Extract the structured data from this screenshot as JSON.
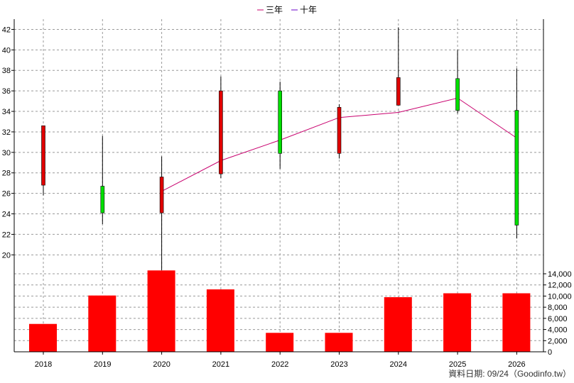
{
  "chart_data": [
    {
      "type": "candlestick",
      "legend": {
        "placement": "top-center",
        "items": [
          {
            "label": "三年",
            "color": "#c8006e"
          },
          {
            "label": "十年",
            "color": "#6a00c8"
          }
        ]
      },
      "categories": [
        "2018",
        "2019",
        "2020",
        "2021",
        "2022",
        "2023",
        "2024",
        "2025",
        "2026"
      ],
      "ylim": [
        18.5,
        43
      ],
      "yticks": [
        20,
        22,
        24,
        26,
        28,
        30,
        32,
        34,
        36,
        38,
        40,
        42
      ],
      "grid": true,
      "candles": [
        {
          "x": "2018",
          "open": 26.8,
          "close": 32.6,
          "high": 32.6,
          "low": 25.8
        },
        {
          "x": "2019",
          "open": 26.7,
          "close": 24.1,
          "high": 31.6,
          "low": 23.0
        },
        {
          "x": "2020",
          "open": 24.1,
          "close": 27.6,
          "high": 29.6,
          "low": 18.5
        },
        {
          "x": "2021",
          "open": 27.9,
          "close": 36.0,
          "high": 37.4,
          "low": 27.5
        },
        {
          "x": "2022",
          "open": 36.0,
          "close": 29.9,
          "high": 36.9,
          "low": 28.4
        },
        {
          "x": "2023",
          "open": 29.9,
          "close": 34.4,
          "high": 34.7,
          "low": 29.4
        },
        {
          "x": "2024",
          "open": 34.6,
          "close": 37.3,
          "high": 42.2,
          "low": 34.6
        },
        {
          "x": "2025",
          "open": 37.2,
          "close": 34.1,
          "high": 40.0,
          "low": 33.8
        },
        {
          "x": "2026",
          "open": 34.1,
          "close": 22.9,
          "high": 38.2,
          "low": 21.6
        }
      ],
      "up_color": "#e00000",
      "down_color": "#00e000",
      "series": [
        {
          "name": "三年",
          "color": "#c8006e",
          "points": [
            {
              "x": "2020",
              "y": 26.2
            },
            {
              "x": "2021",
              "y": 29.2
            },
            {
              "x": "2022",
              "y": 31.2
            },
            {
              "x": "2023",
              "y": 33.4
            },
            {
              "x": "2024",
              "y": 33.9
            },
            {
              "x": "2025",
              "y": 35.3
            },
            {
              "x": "2026",
              "y": 31.4
            }
          ]
        }
      ]
    },
    {
      "type": "bar",
      "categories": [
        "2018",
        "2019",
        "2020",
        "2021",
        "2022",
        "2023",
        "2024",
        "2025",
        "2026"
      ],
      "values": [
        5000,
        10100,
        14600,
        11200,
        3400,
        3400,
        9800,
        10500,
        10500
      ],
      "ylim": [
        0,
        14000
      ],
      "yticks": [
        0,
        2000,
        4000,
        6000,
        8000,
        10000,
        12000,
        14000
      ],
      "ytick_labels": [
        "0",
        "2,000",
        "4,000",
        "6,000",
        "8,000",
        "10,000",
        "12,000",
        "14,000"
      ],
      "bar_color": "#ff0000",
      "grid": true
    }
  ],
  "footer": "資料日期: 09/24（Goodinfo.tw）"
}
